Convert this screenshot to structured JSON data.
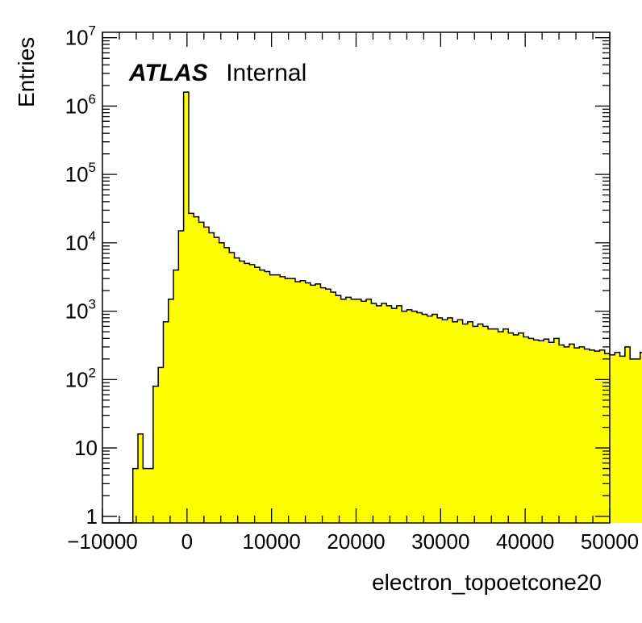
{
  "chart_data": {
    "type": "histogram",
    "title": "",
    "xlabel": "electron_topoetcone20",
    "ylabel": "Entries",
    "xlim": [
      -10000,
      50000
    ],
    "ylim": [
      0.8,
      12000000
    ],
    "yscale": "log",
    "x_tick_labels": [
      "−10000",
      "0",
      "10000",
      "20000",
      "30000",
      "40000",
      "50000"
    ],
    "x_tick_values": [
      -10000,
      0,
      10000,
      20000,
      30000,
      40000,
      50000
    ],
    "y_tick_values": [
      1,
      10,
      100,
      1000,
      10000,
      100000,
      1000000,
      10000000
    ],
    "y_tick_labels": [
      {
        "base": "1",
        "exp": ""
      },
      {
        "base": "10",
        "exp": ""
      },
      {
        "base": "10",
        "exp": "2"
      },
      {
        "base": "10",
        "exp": "3"
      },
      {
        "base": "10",
        "exp": "4"
      },
      {
        "base": "10",
        "exp": "5"
      },
      {
        "base": "10",
        "exp": "6"
      },
      {
        "base": "10",
        "exp": "7"
      }
    ],
    "fill_color": "#ffff00",
    "line_color": "#000000",
    "annotation": {
      "bold": "ATLAS",
      "normal": "Internal"
    },
    "bin_start": -10000,
    "bin_width": 600,
    "values": [
      0,
      0,
      0,
      0,
      0,
      0,
      5,
      16,
      5,
      5,
      80,
      150,
      700,
      1500,
      4000,
      15000,
      1600000,
      27000,
      24000,
      20000,
      17000,
      14000,
      12000,
      10000,
      8500,
      7200,
      6000,
      5400,
      5000,
      4800,
      4400,
      4000,
      3800,
      3400,
      3400,
      3200,
      3000,
      3000,
      2700,
      2800,
      2600,
      2400,
      2500,
      2200,
      2100,
      1900,
      1700,
      1500,
      1600,
      1500,
      1500,
      1400,
      1500,
      1300,
      1200,
      1300,
      1200,
      1100,
      1200,
      1000,
      1050,
      1000,
      950,
      900,
      850,
      900,
      800,
      750,
      800,
      700,
      750,
      650,
      700,
      600,
      650,
      600,
      550,
      550,
      500,
      550,
      480,
      450,
      480,
      420,
      400,
      380,
      370,
      390,
      350,
      400,
      320,
      300,
      330,
      290,
      300,
      280,
      270,
      260,
      270,
      240,
      230,
      250,
      220,
      300,
      200,
      200,
      250,
      220
    ]
  }
}
